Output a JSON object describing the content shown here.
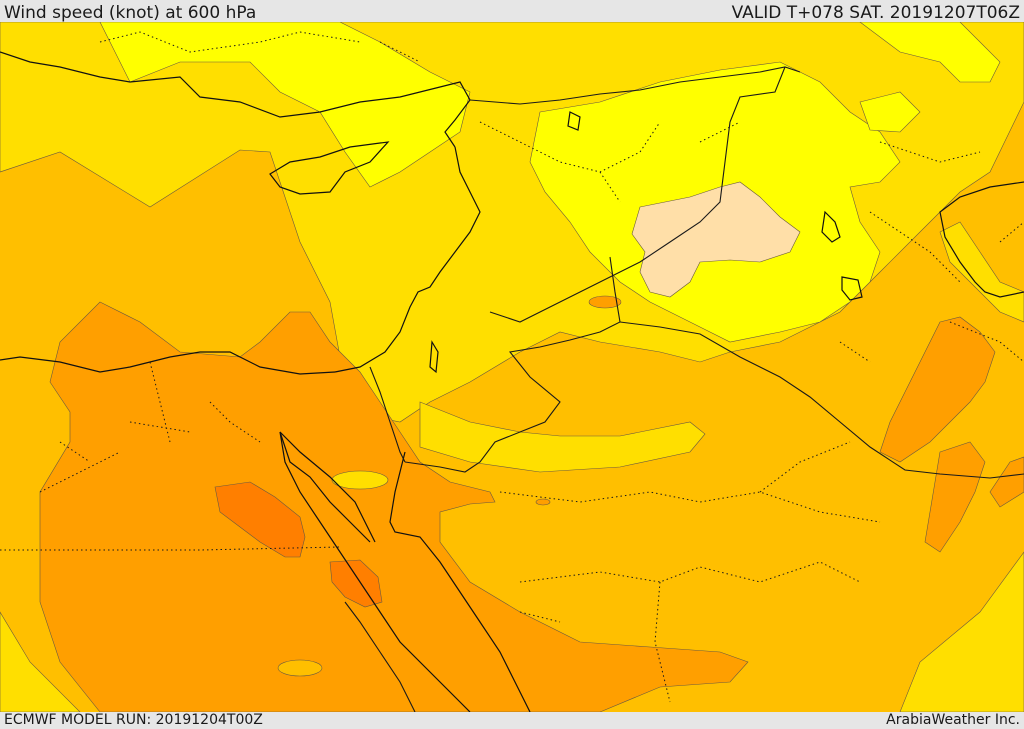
{
  "header": {
    "title": "Wind speed (knot) at 600 hPa",
    "valid": "VALID T+078 SAT. 20191207T06Z"
  },
  "footer": {
    "model_run": "ECMWF MODEL RUN: 20191204T00Z",
    "provider": "ArabiaWeather Inc."
  },
  "colors": {
    "background": "#ffbf00",
    "band_light_yellow": "#ffff00",
    "band_yellow": "#ffdf00",
    "band_orange": "#ff9f00",
    "band_dark_orange": "#ff7f00",
    "band_calm": "#ffdfa8"
  }
}
